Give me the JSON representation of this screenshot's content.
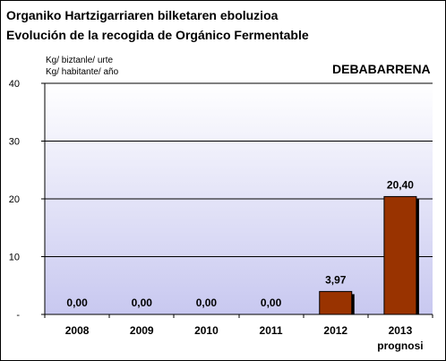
{
  "titles": {
    "line1": "Organiko Hartzigarriaren bilketaren eboluzioa",
    "line2": "Evolución de la recogida de Orgánico Fermentable"
  },
  "units": {
    "line1": "Kg/ biztanle/ urte",
    "line2": "Kg/ habitante/ año"
  },
  "region": "DEBABARRENA",
  "colors": {
    "bar": "#993300",
    "plot_top": "#ffffff",
    "plot_bottom": "#c8c8f0",
    "gridline": "#000000"
  },
  "chart_data": {
    "type": "bar",
    "title": "Organiko Hartzigarriaren bilketaren eboluzioa / Evolución de la recogida de Orgánico Fermentable",
    "ylabel": "Kg/ biztanle/ urte · Kg/ habitante/ año",
    "xlabel": "",
    "categories": [
      "2008",
      "2009",
      "2010",
      "2011",
      "2012",
      "2013"
    ],
    "category_sublabels": [
      "",
      "",
      "",
      "",
      "",
      "prognosi"
    ],
    "values": [
      0.0,
      0.0,
      0.0,
      0.0,
      3.97,
      20.4
    ],
    "value_labels": [
      "0,00",
      "0,00",
      "0,00",
      "0,00",
      "3,97",
      "20,40"
    ],
    "ylim": [
      0,
      40
    ],
    "yticks": [
      0,
      10,
      20,
      30,
      40
    ],
    "ytick_labels": [
      "-",
      "10",
      "20",
      "30",
      "40"
    ],
    "grid": true,
    "legend": "none"
  }
}
